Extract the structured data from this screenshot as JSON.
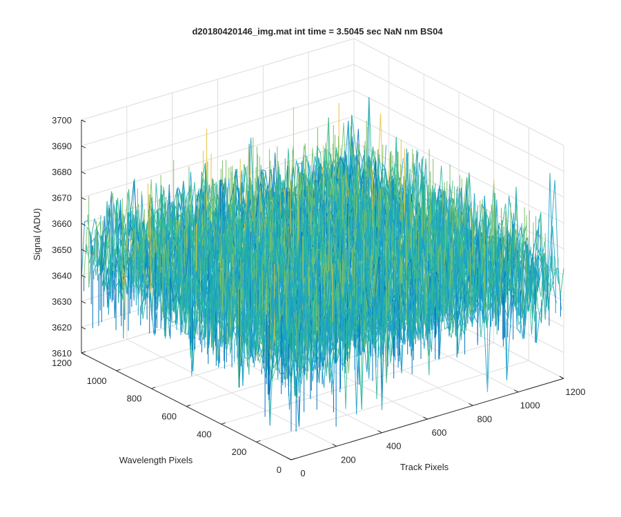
{
  "chart_data": {
    "type": "surface",
    "title": "d20180420146_img.mat int time = 3.5045 sec  NaN nm BS04",
    "xlabel": "Track Pixels",
    "ylabel": "Wavelength Pixels",
    "zlabel": "Signal (ADU)",
    "xlim": [
      0,
      1200
    ],
    "ylim": [
      0,
      1200
    ],
    "zlim": [
      3610,
      3700
    ],
    "x_ticks": [
      "0",
      "200",
      "400",
      "600",
      "800",
      "1000",
      "1200"
    ],
    "y_ticks": [
      "0",
      "200",
      "400",
      "600",
      "800",
      "1000",
      "1200"
    ],
    "z_ticks": [
      "3610",
      "3620",
      "3630",
      "3640",
      "3650",
      "3660",
      "3670",
      "3680",
      "3690",
      "3700"
    ],
    "grid": true,
    "colormap": [
      "#0072bd",
      "#1aa0c9",
      "#2fb89a",
      "#7cc06a",
      "#e6c23a"
    ],
    "data_summary": {
      "x_range": [
        0,
        1200
      ],
      "y_range": [
        0,
        1200
      ],
      "signal_mean": 3650,
      "signal_noise_peak_to_peak": [
        3620,
        3692
      ]
    }
  }
}
